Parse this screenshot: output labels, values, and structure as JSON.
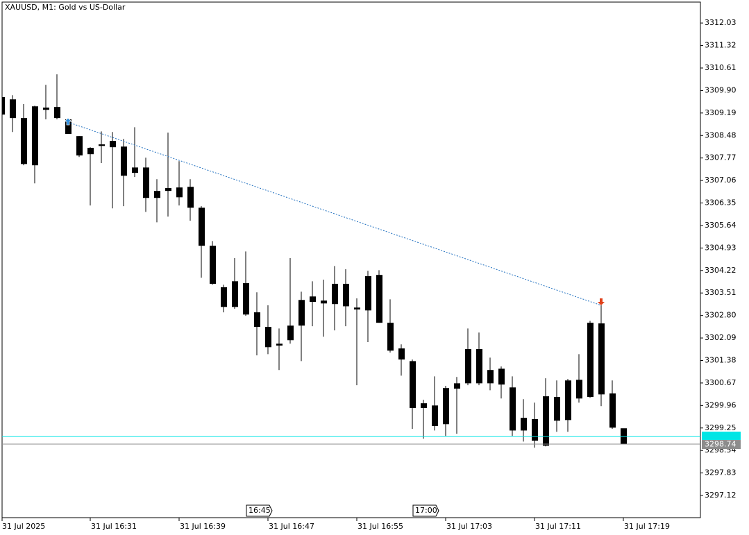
{
  "chart_data": {
    "type": "candlestick",
    "title": "XAUUSD, M1:  Gold vs US-Dollar",
    "categories": [
      "31 Jul 2025",
      null,
      null,
      null,
      null,
      null,
      null,
      null,
      "31 Jul 16:31",
      null,
      null,
      null,
      null,
      null,
      null,
      null,
      "31 Jul 16:39",
      null,
      null,
      null,
      null,
      null,
      null,
      null,
      "31 Jul 16:47",
      null,
      null,
      null,
      null,
      null,
      null,
      null,
      "31 Jul 16:55",
      null,
      null,
      null,
      null,
      null,
      null,
      null,
      "31 Jul 17:03",
      null,
      null,
      null,
      null,
      null,
      null,
      null,
      "31 Jul 17:11",
      null,
      null,
      null,
      null,
      null,
      null,
      null,
      "31 Jul 17:19"
    ],
    "time_markers": [
      null,
      null,
      null,
      null,
      null,
      null,
      null,
      null,
      null,
      null,
      null,
      null,
      null,
      null,
      null,
      null,
      null,
      null,
      null,
      null,
      null,
      null,
      "16:45",
      null,
      null,
      null,
      null,
      null,
      null,
      null,
      null,
      null,
      null,
      null,
      null,
      null,
      null,
      "17:00",
      null,
      null,
      null,
      null,
      null,
      null,
      null,
      null,
      null,
      null,
      null,
      null,
      null,
      null,
      null,
      null,
      null,
      null,
      null
    ],
    "open": [
      3309.69,
      3309.62,
      3309.03,
      3307.54,
      3309.36,
      3309.38,
      3308.99,
      3308.46,
      3307.89,
      3308.15,
      3308.11,
      3308.13,
      3307.3,
      3307.47,
      3306.51,
      3306.73,
      3306.84,
      3306.86,
      3306.2,
      3305.0,
      3303.07,
      3303.88,
      3302.83,
      3302.9,
      3302.44,
      3301.91,
      3302.02,
      3302.48,
      3303.23,
      3303.27,
      3303.16,
      3303.8,
      3303.05,
      3302.96,
      3304.08,
      3302.57,
      3301.76,
      3301.36,
      3299.88,
      3299.96,
      3299.37,
      3300.49,
      3300.66,
      3301.74,
      3300.66,
      3301.12,
      3300.53,
      3299.17,
      3299.53,
      3298.69,
      3299.48,
      3299.5,
      3300.18,
      3300.23,
      3302.55,
      3300.34,
      3299.24
    ],
    "high": [
      3309.73,
      3309.75,
      3309.47,
      3309.42,
      3310.08,
      3310.41,
      3309.03,
      3308.46,
      3308.11,
      3308.61,
      3308.59,
      3308.37,
      3308.74,
      3307.78,
      3307.1,
      3308.57,
      3307.67,
      3307.1,
      3306.25,
      3305.15,
      3303.77,
      3304.61,
      3304.82,
      3303.53,
      3303.12,
      3302.39,
      3304.61,
      3303.55,
      3303.88,
      3303.93,
      3304.36,
      3304.26,
      3303.34,
      3304.21,
      3304.23,
      3303.31,
      3301.89,
      3301.41,
      3300.14,
      3300.88,
      3300.58,
      3300.86,
      3302.39,
      3302.26,
      3301.47,
      3301.19,
      3300.88,
      3300.16,
      3300.05,
      3300.82,
      3300.75,
      3300.8,
      3301.58,
      3302.63,
      3303.12,
      3300.75,
      3299.22
    ],
    "low": [
      3309.07,
      3308.59,
      3307.54,
      3306.97,
      3308.99,
      3308.99,
      3308.53,
      3307.8,
      3306.27,
      3307.61,
      3306.18,
      3306.25,
      3307.17,
      3306.07,
      3305.74,
      3305.92,
      3306.27,
      3305.79,
      3303.99,
      3303.77,
      3302.9,
      3303.01,
      3302.79,
      3301.54,
      3301.58,
      3301.08,
      3301.91,
      3301.36,
      3302.46,
      3302.13,
      3302.33,
      3302.46,
      3300.6,
      3301.96,
      3302.57,
      3301.63,
      3300.9,
      3299.22,
      3298.91,
      3299.17,
      3299.0,
      3299.07,
      3300.6,
      3300.6,
      3300.44,
      3300.18,
      3299.0,
      3298.82,
      3298.63,
      3298.67,
      3299.13,
      3299.13,
      3300.05,
      3300.2,
      3299.94,
      3299.22,
      3298.74
    ],
    "close": [
      3309.14,
      3309.03,
      3307.58,
      3309.4,
      3309.29,
      3309.03,
      3308.53,
      3307.85,
      3308.09,
      3308.2,
      3308.31,
      3307.21,
      3307.47,
      3306.51,
      3306.73,
      3306.82,
      3306.53,
      3306.2,
      3305.0,
      3303.8,
      3303.69,
      3303.07,
      3303.82,
      3302.44,
      3301.8,
      3301.85,
      3302.48,
      3303.29,
      3303.4,
      3303.18,
      3303.8,
      3303.09,
      3302.99,
      3304.04,
      3302.57,
      3301.69,
      3301.41,
      3299.88,
      3300.03,
      3299.31,
      3300.51,
      3300.66,
      3301.74,
      3300.66,
      3301.08,
      3300.62,
      3299.17,
      3299.57,
      3298.85,
      3300.25,
      3300.23,
      3300.75,
      3300.77,
      3302.57,
      3300.31,
      3299.26,
      3298.74
    ],
    "color": "#000000",
    "trade": [
      null,
      null,
      null,
      null,
      null,
      null,
      3308.9,
      null,
      null,
      null,
      null,
      null,
      null,
      null,
      null,
      null,
      null,
      null,
      null,
      null,
      null,
      null,
      null,
      null,
      null,
      null,
      null,
      null,
      null,
      null,
      null,
      null,
      null,
      null,
      null,
      null,
      null,
      null,
      null,
      null,
      null,
      null,
      null,
      null,
      null,
      null,
      null,
      null,
      null,
      null,
      null,
      null,
      null,
      null,
      3303.12,
      null,
      null
    ],
    "trade_color": "#1f6fbf",
    "entry_color": "#2b8ee0",
    "exit_color": "#e0401a",
    "ask": 3298.98,
    "ask_color": "#00e5e5",
    "bid": 3298.74,
    "bid_color": "#8c8c8c",
    "ylim": [
      3296.42,
      3312.69
    ],
    "yticks": [
      3312.03,
      3311.32,
      3310.61,
      {
        "value": 3309.9,
        "label": "3309.90"
      },
      3309.19,
      3308.48,
      3307.77,
      3307.06,
      3306.35,
      3305.64,
      3304.93,
      3304.22,
      3303.51,
      {
        "value": 3302.8,
        "label": "3302.80"
      },
      3302.09,
      3301.38,
      3300.67,
      3299.96,
      3299.25,
      3298.54,
      3297.83,
      3297.12
    ]
  }
}
